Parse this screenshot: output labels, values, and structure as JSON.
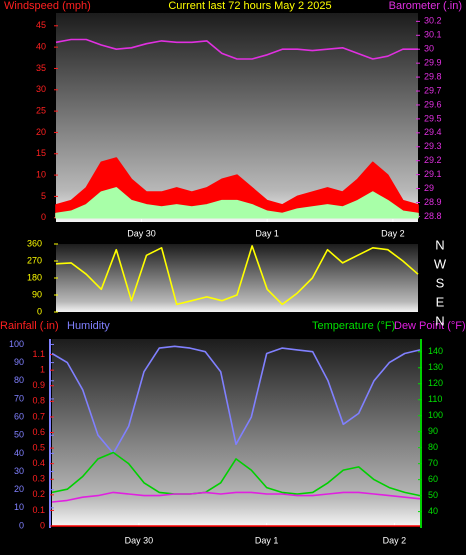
{
  "chart_data": [
    {
      "type": "line",
      "title": "Current last 72 hours May 2 2025",
      "ylabel": "Windspeed (mph)",
      "y2label": "Barometer (.in)",
      "x": [
        0,
        3,
        6,
        9,
        12,
        15,
        18,
        21,
        24,
        27,
        30,
        33,
        36,
        39,
        42,
        45,
        48,
        51,
        54,
        57,
        60,
        63,
        66,
        69,
        72
      ],
      "xlim": [
        0,
        72
      ],
      "xticks": [
        {
          "value": 17,
          "label": "Day 30"
        },
        {
          "value": 42,
          "label": "Day 1"
        },
        {
          "value": 67,
          "label": "Day 2"
        }
      ],
      "ylim": [
        -1,
        48
      ],
      "yticks": [
        0,
        5,
        10,
        15,
        20,
        25,
        30,
        35,
        40,
        45
      ],
      "ycolor": "#ff2020",
      "y2lim": [
        28.76,
        30.26
      ],
      "y2ticks": [
        28.8,
        28.9,
        29,
        29.1,
        29.2,
        29.3,
        29.4,
        29.5,
        29.6,
        29.7,
        29.8,
        29.9,
        30,
        30.1,
        30.2
      ],
      "y2color": "#e030e0",
      "series": [
        {
          "color": "#ff0000",
          "fill": true,
          "values": [
            3,
            4,
            7,
            13,
            14,
            9,
            6,
            6,
            7,
            6,
            7,
            9,
            10,
            7,
            4,
            3,
            5,
            6,
            7,
            6,
            9,
            13,
            10,
            4,
            3
          ]
        },
        {
          "color": "#a8ffa8",
          "fill": true,
          "values": [
            1,
            1.5,
            3,
            6,
            7,
            4,
            3,
            2.5,
            3,
            2.5,
            3,
            4,
            4,
            3,
            1.5,
            1,
            2,
            2.5,
            3,
            2.5,
            4,
            6,
            4,
            1.5,
            1
          ]
        },
        {
          "color": "#e030e0",
          "axis": "y2",
          "values": [
            30.05,
            30.07,
            30.07,
            30.03,
            30.0,
            30.01,
            30.04,
            30.06,
            30.05,
            30.05,
            30.06,
            29.97,
            29.93,
            29.93,
            29.96,
            30.0,
            30.0,
            29.99,
            30.0,
            30.01,
            29.97,
            29.93,
            29.95,
            30.0,
            30.0
          ]
        }
      ]
    },
    {
      "type": "line",
      "x": [
        0,
        3,
        6,
        9,
        12,
        15,
        18,
        21,
        24,
        27,
        30,
        33,
        36,
        39,
        42,
        45,
        48,
        51,
        54,
        57,
        60,
        63,
        66,
        69,
        72
      ],
      "xlim": [
        0,
        72
      ],
      "ylim": [
        0,
        360
      ],
      "yticks": [
        0,
        90,
        180,
        270,
        360
      ],
      "ycolor": "#ffff00",
      "y2lim": [
        0,
        360
      ],
      "y2ticks": [
        {
          "value": 360,
          "label": "N"
        },
        {
          "value": 270,
          "label": "W"
        },
        {
          "value": 180,
          "label": "S"
        },
        {
          "value": 90,
          "label": "E"
        },
        {
          "value": 0,
          "label": "N"
        }
      ],
      "y2color": "#ffffff",
      "series": [
        {
          "color": "#ffff00",
          "values": [
            255,
            260,
            200,
            120,
            330,
            60,
            300,
            340,
            40,
            60,
            80,
            60,
            90,
            350,
            120,
            40,
            100,
            180,
            330,
            260,
            300,
            340,
            330,
            270,
            200
          ]
        }
      ]
    },
    {
      "type": "line",
      "ylabel": "Humidity",
      "y3label": "Rainfall (.in)",
      "y2label": "Temperature (°F)",
      "y2label2": "Dew Point (°F)",
      "x": [
        0,
        3,
        6,
        9,
        12,
        15,
        18,
        21,
        24,
        27,
        30,
        33,
        36,
        39,
        42,
        45,
        48,
        51,
        54,
        57,
        60,
        63,
        66,
        69,
        72
      ],
      "xlim": [
        0,
        72
      ],
      "xticks": [
        {
          "value": 17,
          "label": "Day 30"
        },
        {
          "value": 42,
          "label": "Day 1"
        },
        {
          "value": 67,
          "label": "Day 2"
        }
      ],
      "ylim": [
        0,
        103
      ],
      "yticks": [
        0,
        10,
        20,
        30,
        40,
        50,
        60,
        70,
        80,
        90,
        100
      ],
      "ycolor": "#8080ff",
      "y3lim": [
        0,
        1.2
      ],
      "y3ticks": [
        0,
        0.1,
        0.2,
        0.3,
        0.4,
        0.5,
        0.6,
        0.7,
        0.8,
        0.9,
        1,
        1.1
      ],
      "y3color": "#ff2020",
      "y2lim": [
        31,
        148
      ],
      "y2ticks": [
        40,
        50,
        60,
        70,
        80,
        90,
        100,
        110,
        120,
        130,
        140
      ],
      "y2color": "#00e000",
      "series": [
        {
          "color": "#ff0000",
          "axis": "y3",
          "values": [
            0,
            0,
            0,
            0,
            0,
            0,
            0,
            0,
            0,
            0,
            0,
            0,
            0,
            0,
            0,
            0,
            0,
            0,
            0,
            0,
            0,
            0,
            0,
            0,
            0
          ]
        },
        {
          "color": "#8080ff",
          "values": [
            95,
            90,
            75,
            50,
            40,
            55,
            85,
            98,
            99,
            98,
            96,
            85,
            45,
            60,
            95,
            98,
            97,
            96,
            80,
            56,
            62,
            80,
            90,
            95,
            97
          ]
        },
        {
          "color": "#00d000",
          "axis": "y2",
          "values": [
            52,
            54,
            62,
            73,
            77,
            70,
            58,
            52,
            51,
            51,
            52,
            58,
            73,
            66,
            55,
            52,
            51,
            52,
            58,
            66,
            68,
            60,
            55,
            52,
            50
          ]
        },
        {
          "color": "#e020e0",
          "axis": "y2",
          "values": [
            46,
            47,
            49,
            50,
            52,
            51,
            50,
            50,
            51,
            51,
            52,
            51,
            52,
            52,
            51,
            51,
            50,
            50,
            51,
            52,
            52,
            51,
            50,
            49,
            48
          ]
        }
      ]
    }
  ]
}
